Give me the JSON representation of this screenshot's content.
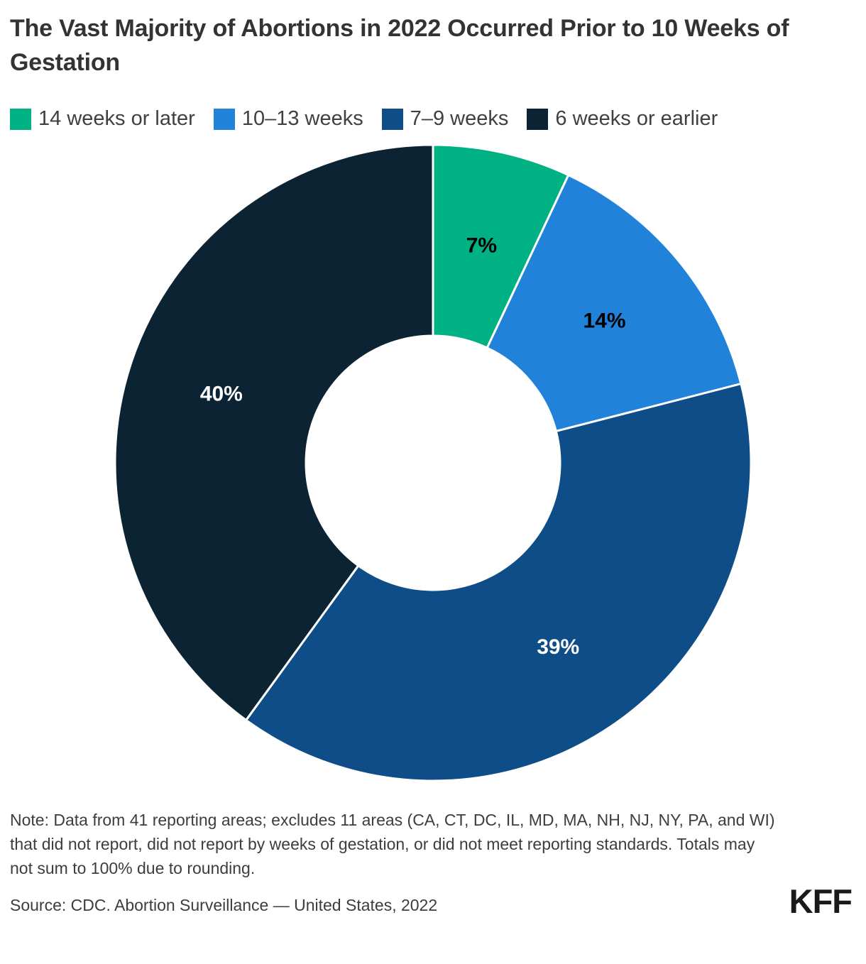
{
  "title": "The Vast Majority of Abortions in 2022 Occurred Prior to 10 Weeks of Gestation",
  "note": "Note: Data from 41 reporting areas; excludes 11 areas (CA, CT, DC, IL, MD, MA, NH, NJ, NY, PA, and WI) that did not report, did not report by weeks of gestation, or did not meet reporting standards. Totals may not sum to 100% due to rounding.",
  "source": "Source: CDC. Abortion Surveillance — United States, 2022",
  "logo": "KFF",
  "chart_data": {
    "type": "pie",
    "subtype": "donut",
    "title": "The Vast Majority of Abortions in 2022 Occurred Prior to 10 Weeks of Gestation",
    "legend_position": "top",
    "direction": "clockwise",
    "start_angle_deg": 0,
    "inner_radius_ratio": 0.4,
    "value_suffix": "%",
    "slice_border_color": "#ffffff",
    "slices": [
      {
        "label": "14 weeks or later",
        "value": 7,
        "color": "#00B183",
        "label_color": "#000000"
      },
      {
        "label": "10–13 weeks",
        "value": 14,
        "color": "#2082D9",
        "label_color": "#000000"
      },
      {
        "label": "7–9 weeks",
        "value": 39,
        "color": "#0E4D87",
        "label_color": "#FFFFFF"
      },
      {
        "label": "6 weeks or earlier",
        "value": 40,
        "color": "#0C2334",
        "label_color": "#FFFFFF"
      }
    ]
  }
}
